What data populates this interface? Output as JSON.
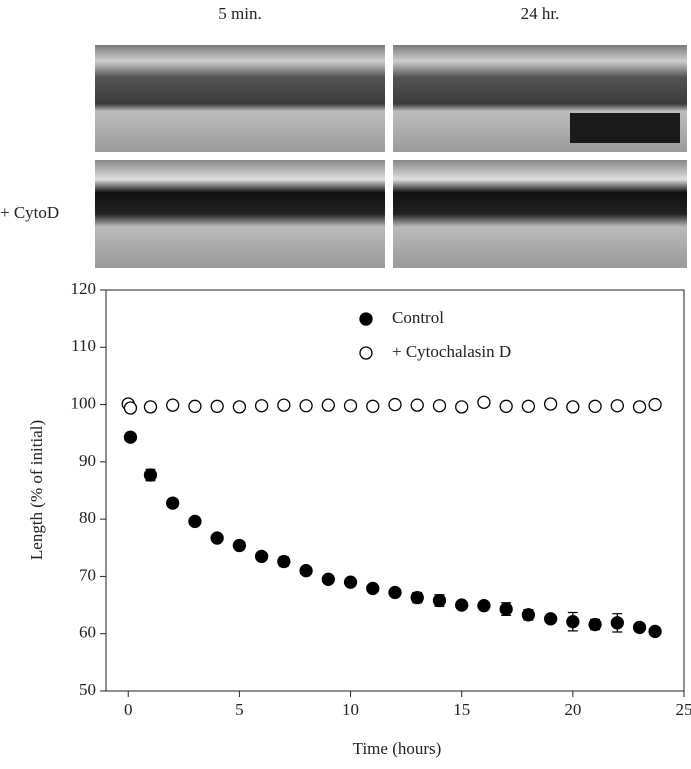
{
  "images": {
    "columns": [
      "5 min.",
      "24 hr."
    ],
    "row_label": "+ CytoD"
  },
  "chart_data": {
    "type": "scatter",
    "xlabel": "Time (hours)",
    "ylabel": "Length (% of initial)",
    "xlim": [
      -1,
      25
    ],
    "ylim": [
      50,
      120
    ],
    "xticks": [
      0,
      5,
      10,
      15,
      20,
      25
    ],
    "yticks": [
      50,
      60,
      70,
      80,
      90,
      100,
      110,
      120
    ],
    "legend": "top-center",
    "series": [
      {
        "name": "Control",
        "color": "#000000",
        "marker": "filled",
        "x": [
          0.1,
          1,
          2,
          3,
          4,
          5,
          6,
          7,
          8,
          9,
          10,
          11,
          12,
          13,
          14,
          15,
          16,
          17,
          18,
          19,
          20,
          21,
          22,
          23,
          23.7
        ],
        "values": [
          94.3,
          87.7,
          82.8,
          79.6,
          76.7,
          75.4,
          73.5,
          72.6,
          71.0,
          69.5,
          69.0,
          67.9,
          67.2,
          66.3,
          65.8,
          65.0,
          64.9,
          64.3,
          63.3,
          62.6,
          62.1,
          61.6,
          61.9,
          61.1,
          60.4
        ],
        "errors": [
          0.5,
          1.0,
          0.3,
          0.5,
          0.3,
          0.6,
          0.4,
          0.8,
          0.4,
          0.6,
          0.6,
          0.4,
          0.6,
          0.9,
          1.0,
          0.4,
          0.5,
          1.1,
          0.9,
          0.4,
          1.6,
          0.9,
          1.6,
          0.7,
          0.6
        ]
      },
      {
        "name": "+ Cytochalasin D",
        "color": "#000000",
        "marker": "open",
        "x": [
          0,
          0.1,
          1,
          2,
          3,
          4,
          5,
          6,
          7,
          8,
          9,
          10,
          11,
          12,
          13,
          14,
          15,
          16,
          17,
          18,
          19,
          20,
          21,
          22,
          23,
          23.7
        ],
        "values": [
          100.1,
          99.4,
          99.6,
          99.9,
          99.7,
          99.7,
          99.6,
          99.8,
          99.9,
          99.8,
          99.9,
          99.8,
          99.7,
          100.0,
          99.9,
          99.8,
          99.6,
          100.4,
          99.7,
          99.7,
          100.1,
          99.6,
          99.7,
          99.8,
          99.6,
          100.0
        ]
      }
    ]
  }
}
